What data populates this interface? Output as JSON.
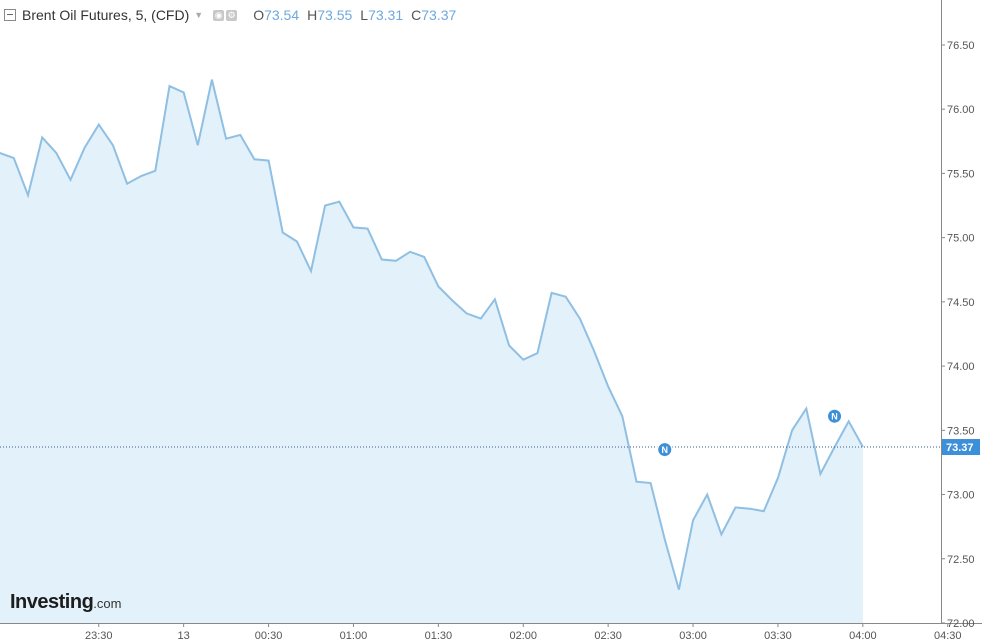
{
  "header": {
    "title": "Brent Oil Futures, 5, (CFD)",
    "open_label": "O",
    "open": "73.54",
    "high_label": "H",
    "high": "73.55",
    "low_label": "L",
    "low": "73.31",
    "close_label": "C",
    "close": "73.37"
  },
  "logo": {
    "brand": "Investing",
    "tld": ".com"
  },
  "colors": {
    "line": "#8fbfe3",
    "fill": "#e3f1fa",
    "accent": "#3d8fd9",
    "axis": "#888888"
  },
  "chart_data": {
    "type": "area",
    "ylim": [
      72.0,
      76.85
    ],
    "y_ticks": [
      72.0,
      72.5,
      73.0,
      73.5,
      74.0,
      74.5,
      75.0,
      75.5,
      76.0,
      76.5
    ],
    "y_tick_labels": [
      "72.00",
      "72.50",
      "73.00",
      "73.50",
      "74.00",
      "74.50",
      "75.00",
      "75.50",
      "76.00",
      "76.50"
    ],
    "x_ticks": [
      {
        "at": 7,
        "label": "23:30"
      },
      {
        "at": 13,
        "label": "13"
      },
      {
        "at": 19,
        "label": "00:30"
      },
      {
        "at": 25,
        "label": "01:00"
      },
      {
        "at": 31,
        "label": "01:30"
      },
      {
        "at": 37,
        "label": "02:00"
      },
      {
        "at": 43,
        "label": "02:30"
      },
      {
        "at": 49,
        "label": "03:00"
      },
      {
        "at": 55,
        "label": "03:30"
      },
      {
        "at": 61,
        "label": "04:00"
      },
      {
        "at": 67,
        "label": "04:30"
      }
    ],
    "values": [
      75.66,
      75.62,
      75.33,
      75.78,
      75.66,
      75.45,
      75.7,
      75.88,
      75.72,
      75.42,
      75.48,
      75.52,
      76.18,
      76.13,
      75.72,
      76.23,
      75.77,
      75.8,
      75.61,
      75.6,
      75.04,
      74.97,
      74.74,
      75.25,
      75.28,
      75.08,
      75.07,
      74.83,
      74.82,
      74.89,
      74.85,
      74.62,
      74.51,
      74.41,
      74.37,
      74.52,
      74.16,
      74.05,
      74.1,
      74.57,
      74.54,
      74.37,
      74.12,
      73.84,
      73.61,
      73.1,
      73.09,
      72.65,
      72.26,
      72.8,
      73.0,
      72.69,
      72.9,
      72.89,
      72.87,
      73.13,
      73.5,
      73.67,
      73.16,
      73.37,
      73.57,
      73.37
    ],
    "current_price": 73.37,
    "current_price_label": "73.37",
    "news_markers": [
      {
        "at": 47,
        "value": 73.35,
        "label": "N"
      },
      {
        "at": 59,
        "value": 73.61,
        "label": "N"
      }
    ]
  }
}
